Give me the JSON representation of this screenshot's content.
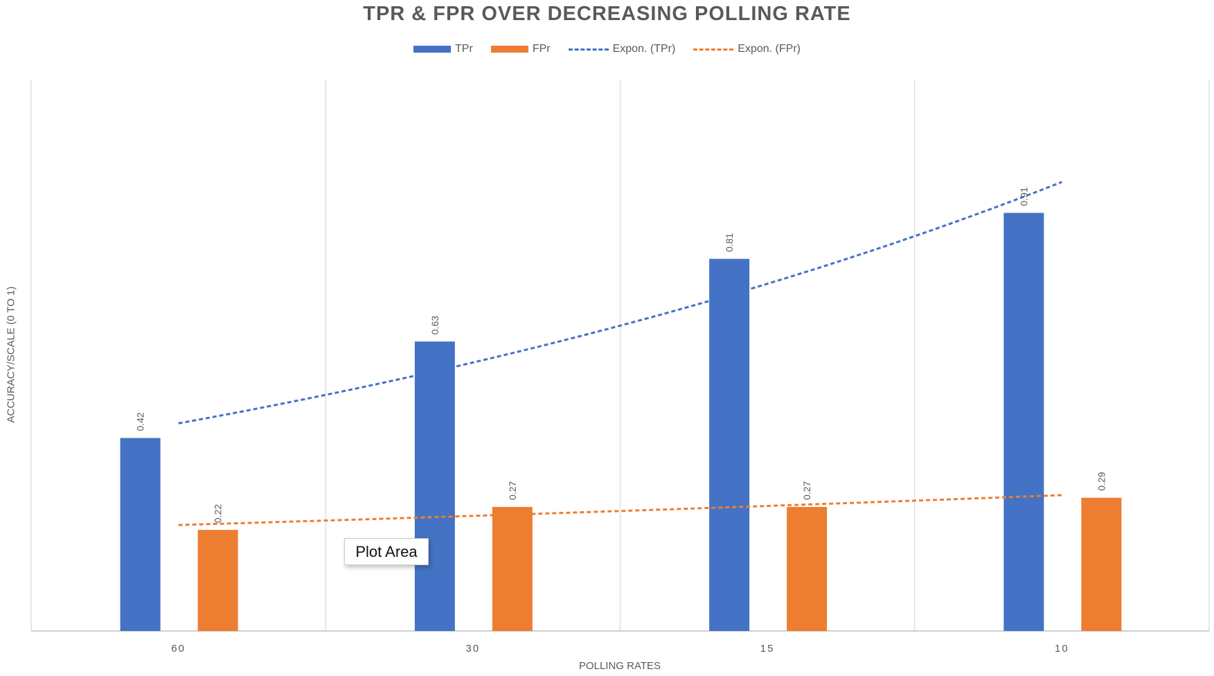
{
  "chart_data": {
    "type": "bar",
    "title": "TPR & FPR OVER DECREASING POLLING RATE",
    "xlabel": "POLLING RATES",
    "ylabel": "ACCURACY/SCALE (0 TO 1)",
    "categories": [
      "60",
      "30",
      "15",
      "10"
    ],
    "series": [
      {
        "name": "TPr",
        "values": [
          0.42,
          0.63,
          0.81,
          0.91
        ],
        "color": "#4472C4"
      },
      {
        "name": "FPr",
        "values": [
          0.22,
          0.27,
          0.27,
          0.29
        ],
        "color": "#ED7D31"
      }
    ],
    "trendlines": [
      {
        "name": "Expon. (TPr)",
        "of": "TPr",
        "type": "exponential",
        "color": "#4472C4"
      },
      {
        "name": "Expon. (FPr)",
        "of": "FPr",
        "type": "exponential",
        "color": "#ED7D31"
      }
    ],
    "data_labels": true,
    "ylim": [
      0,
      1.2
    ],
    "y_axis_visible": false,
    "grid": "vertical",
    "legend": "top"
  },
  "tooltip": "Plot Area"
}
